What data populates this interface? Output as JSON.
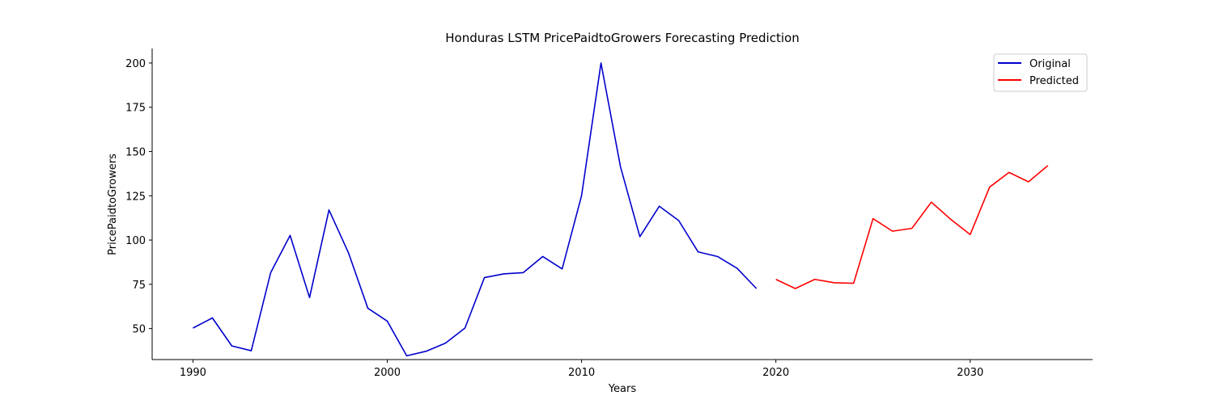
{
  "chart_data": {
    "type": "line",
    "title": "Honduras LSTM PricePaidtoGrowers Forecasting Prediction",
    "xlabel": "Years",
    "ylabel": "PricePaidtoGrowers",
    "xlim": [
      1987.9,
      2036.3
    ],
    "ylim": [
      32.5,
      208.2
    ],
    "xticks": [
      1990,
      2000,
      2010,
      2020,
      2030
    ],
    "yticks": [
      50,
      75,
      100,
      125,
      150,
      175,
      200
    ],
    "grid": false,
    "legend_position": "top-right",
    "series": [
      {
        "name": "Original",
        "color": "#0000cc",
        "x": [
          1990,
          1991,
          1992,
          1993,
          1994,
          1995,
          1996,
          1997,
          1998,
          1999,
          2000,
          2001,
          2002,
          2003,
          2004,
          2005,
          2006,
          2007,
          2008,
          2009,
          2010,
          2011,
          2012,
          2013,
          2014,
          2015,
          2016,
          2017,
          2018,
          2019
        ],
        "y": [
          50.3,
          56.0,
          40.2,
          37.5,
          81.6,
          102.6,
          67.5,
          117.0,
          92.9,
          61.5,
          54.2,
          34.6,
          37.2,
          41.8,
          50.3,
          78.8,
          80.9,
          81.6,
          90.7,
          83.7,
          125.1,
          200.0,
          141.5,
          101.9,
          119.1,
          111.0,
          93.3,
          90.7,
          84.1,
          72.6
        ]
      },
      {
        "name": "Predicted",
        "color": "#ff0000",
        "x": [
          2020,
          2021,
          2022,
          2023,
          2024,
          2025,
          2026,
          2027,
          2028,
          2029,
          2030,
          2031,
          2032,
          2033,
          2034
        ],
        "y": [
          77.8,
          72.6,
          77.8,
          75.9,
          75.6,
          112.1,
          105.0,
          106.6,
          121.4,
          111.7,
          103.1,
          129.9,
          138.2,
          132.9,
          142.1
        ]
      }
    ]
  }
}
